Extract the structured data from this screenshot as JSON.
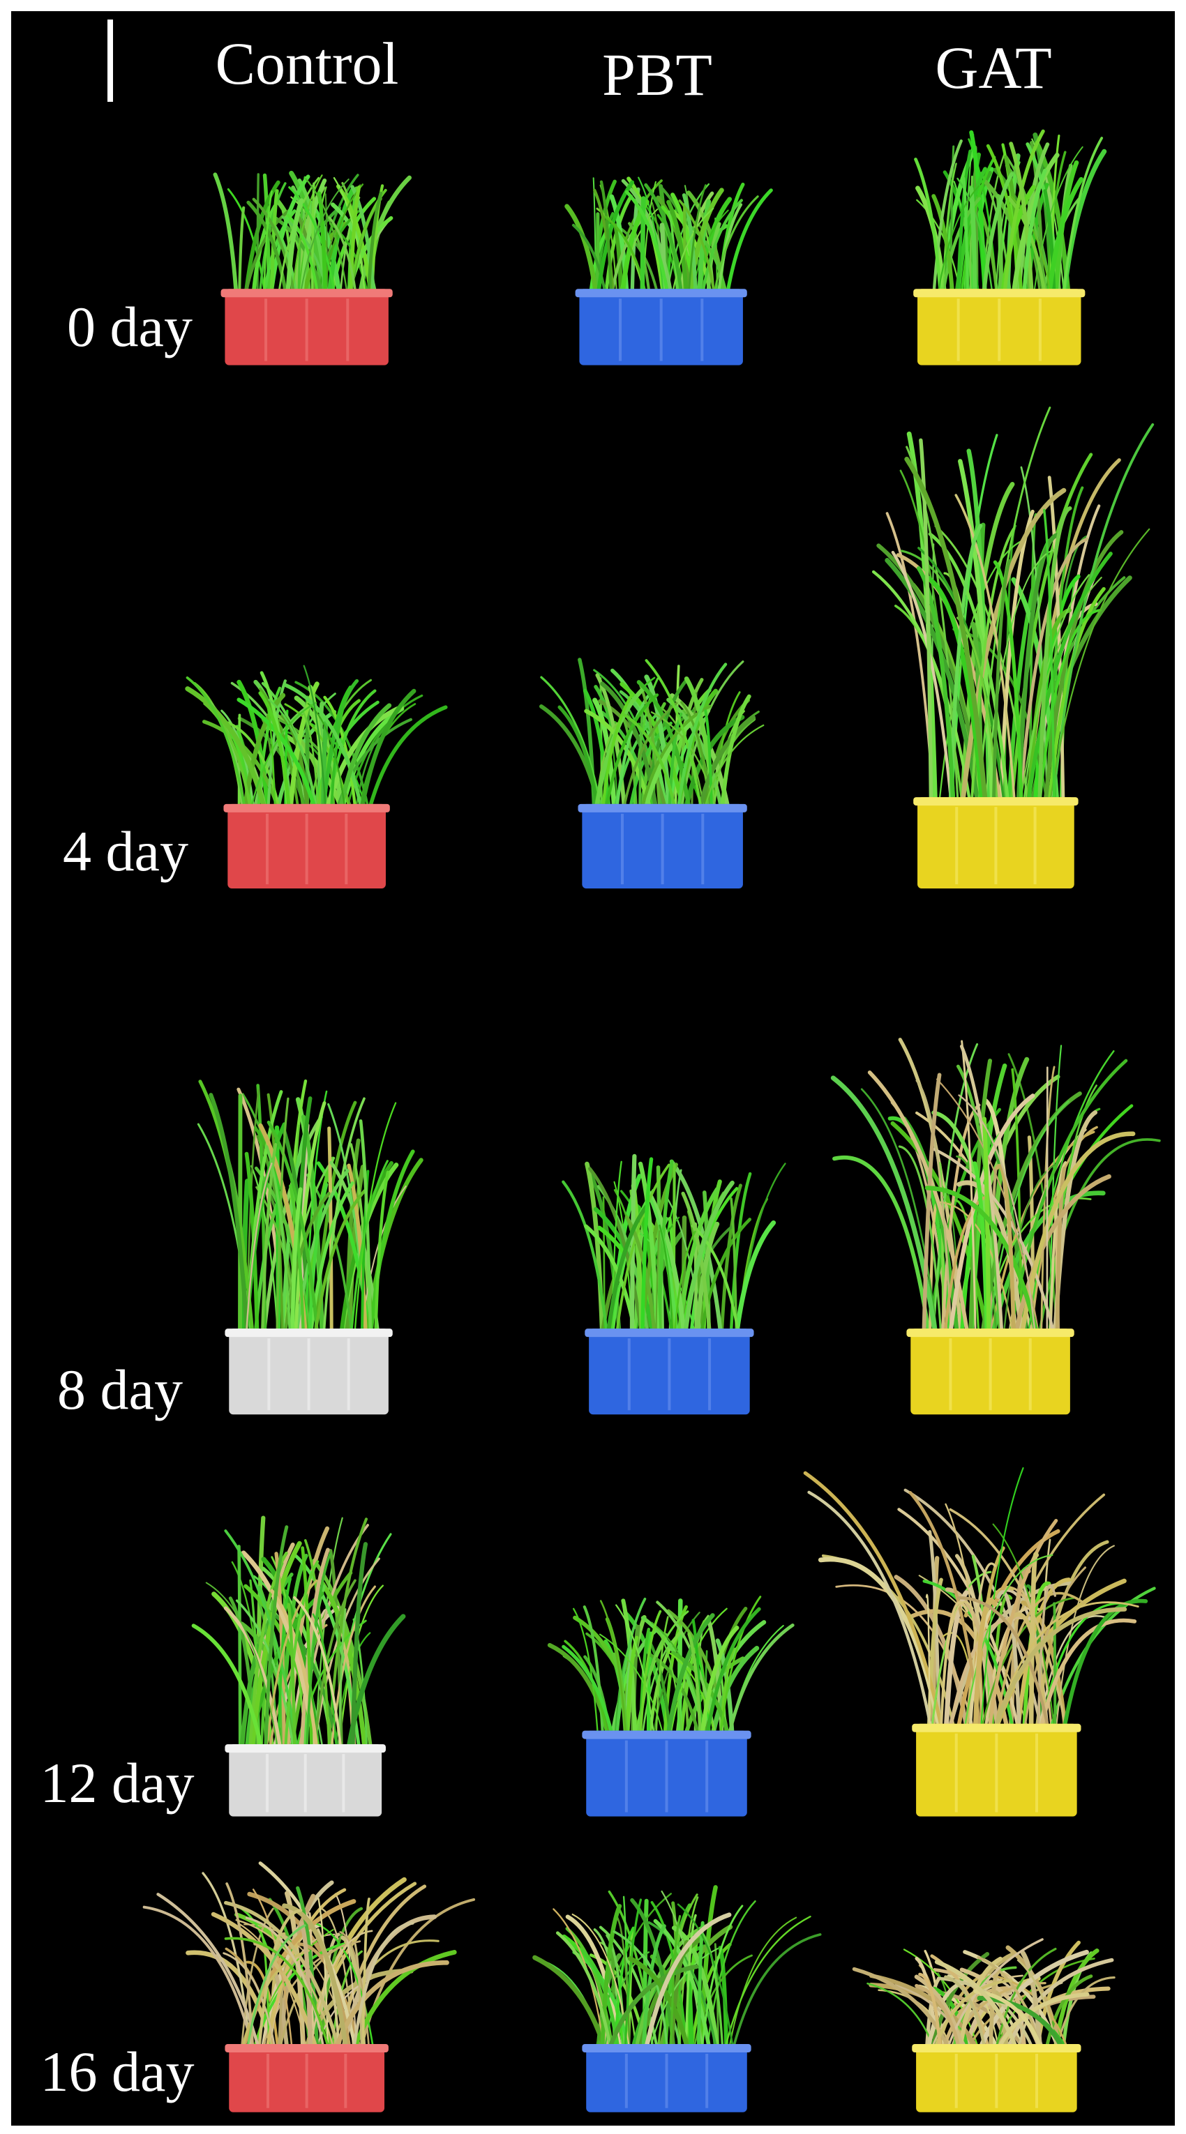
{
  "columns": [
    "Control",
    "PBT",
    "GAT"
  ],
  "rows": [
    "0 day",
    "4 day",
    "8 day",
    "12 day",
    "16 day"
  ]
}
